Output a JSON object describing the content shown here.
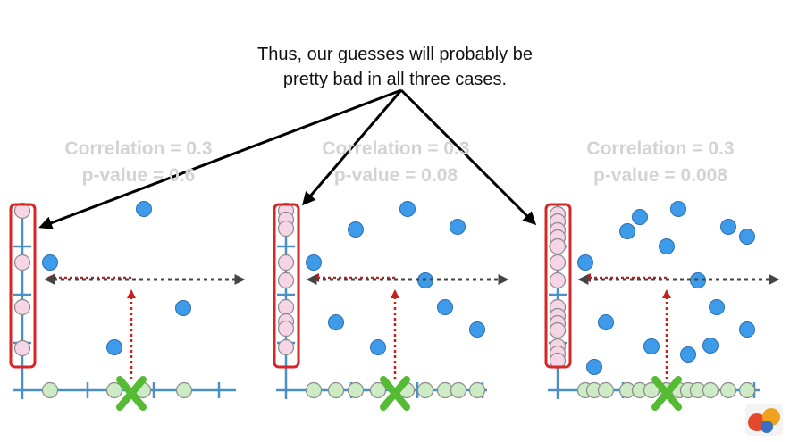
{
  "caption": {
    "line1": "Thus, our guesses will probably be",
    "line2": "pretty bad in all three cases."
  },
  "panels": [
    {
      "correlation": "Correlation = 0.3",
      "pvalue": "p-value = 0.6",
      "n_points": 5
    },
    {
      "correlation": "Correlation = 0.3",
      "pvalue": "p-value = 0.08",
      "n_points": 9
    },
    {
      "correlation": "Correlation = 0.3",
      "pvalue": "p-value = 0.008",
      "n_points": 15
    }
  ],
  "colors": {
    "point": "#3d9be9",
    "projection_y": "#f6d5e6",
    "projection_x": "#cdebc5",
    "axis": "#4a90c8",
    "highlight_box": "#d62728",
    "guess_marker": "#55bb33",
    "dotted_red": "#c42020",
    "dotted_gray": "#444444",
    "caption_text": "#111111",
    "stat_text": "#d3d3d3"
  },
  "icons": {
    "guess_marker": "green-x-marker",
    "logo": "statquest-logo"
  }
}
